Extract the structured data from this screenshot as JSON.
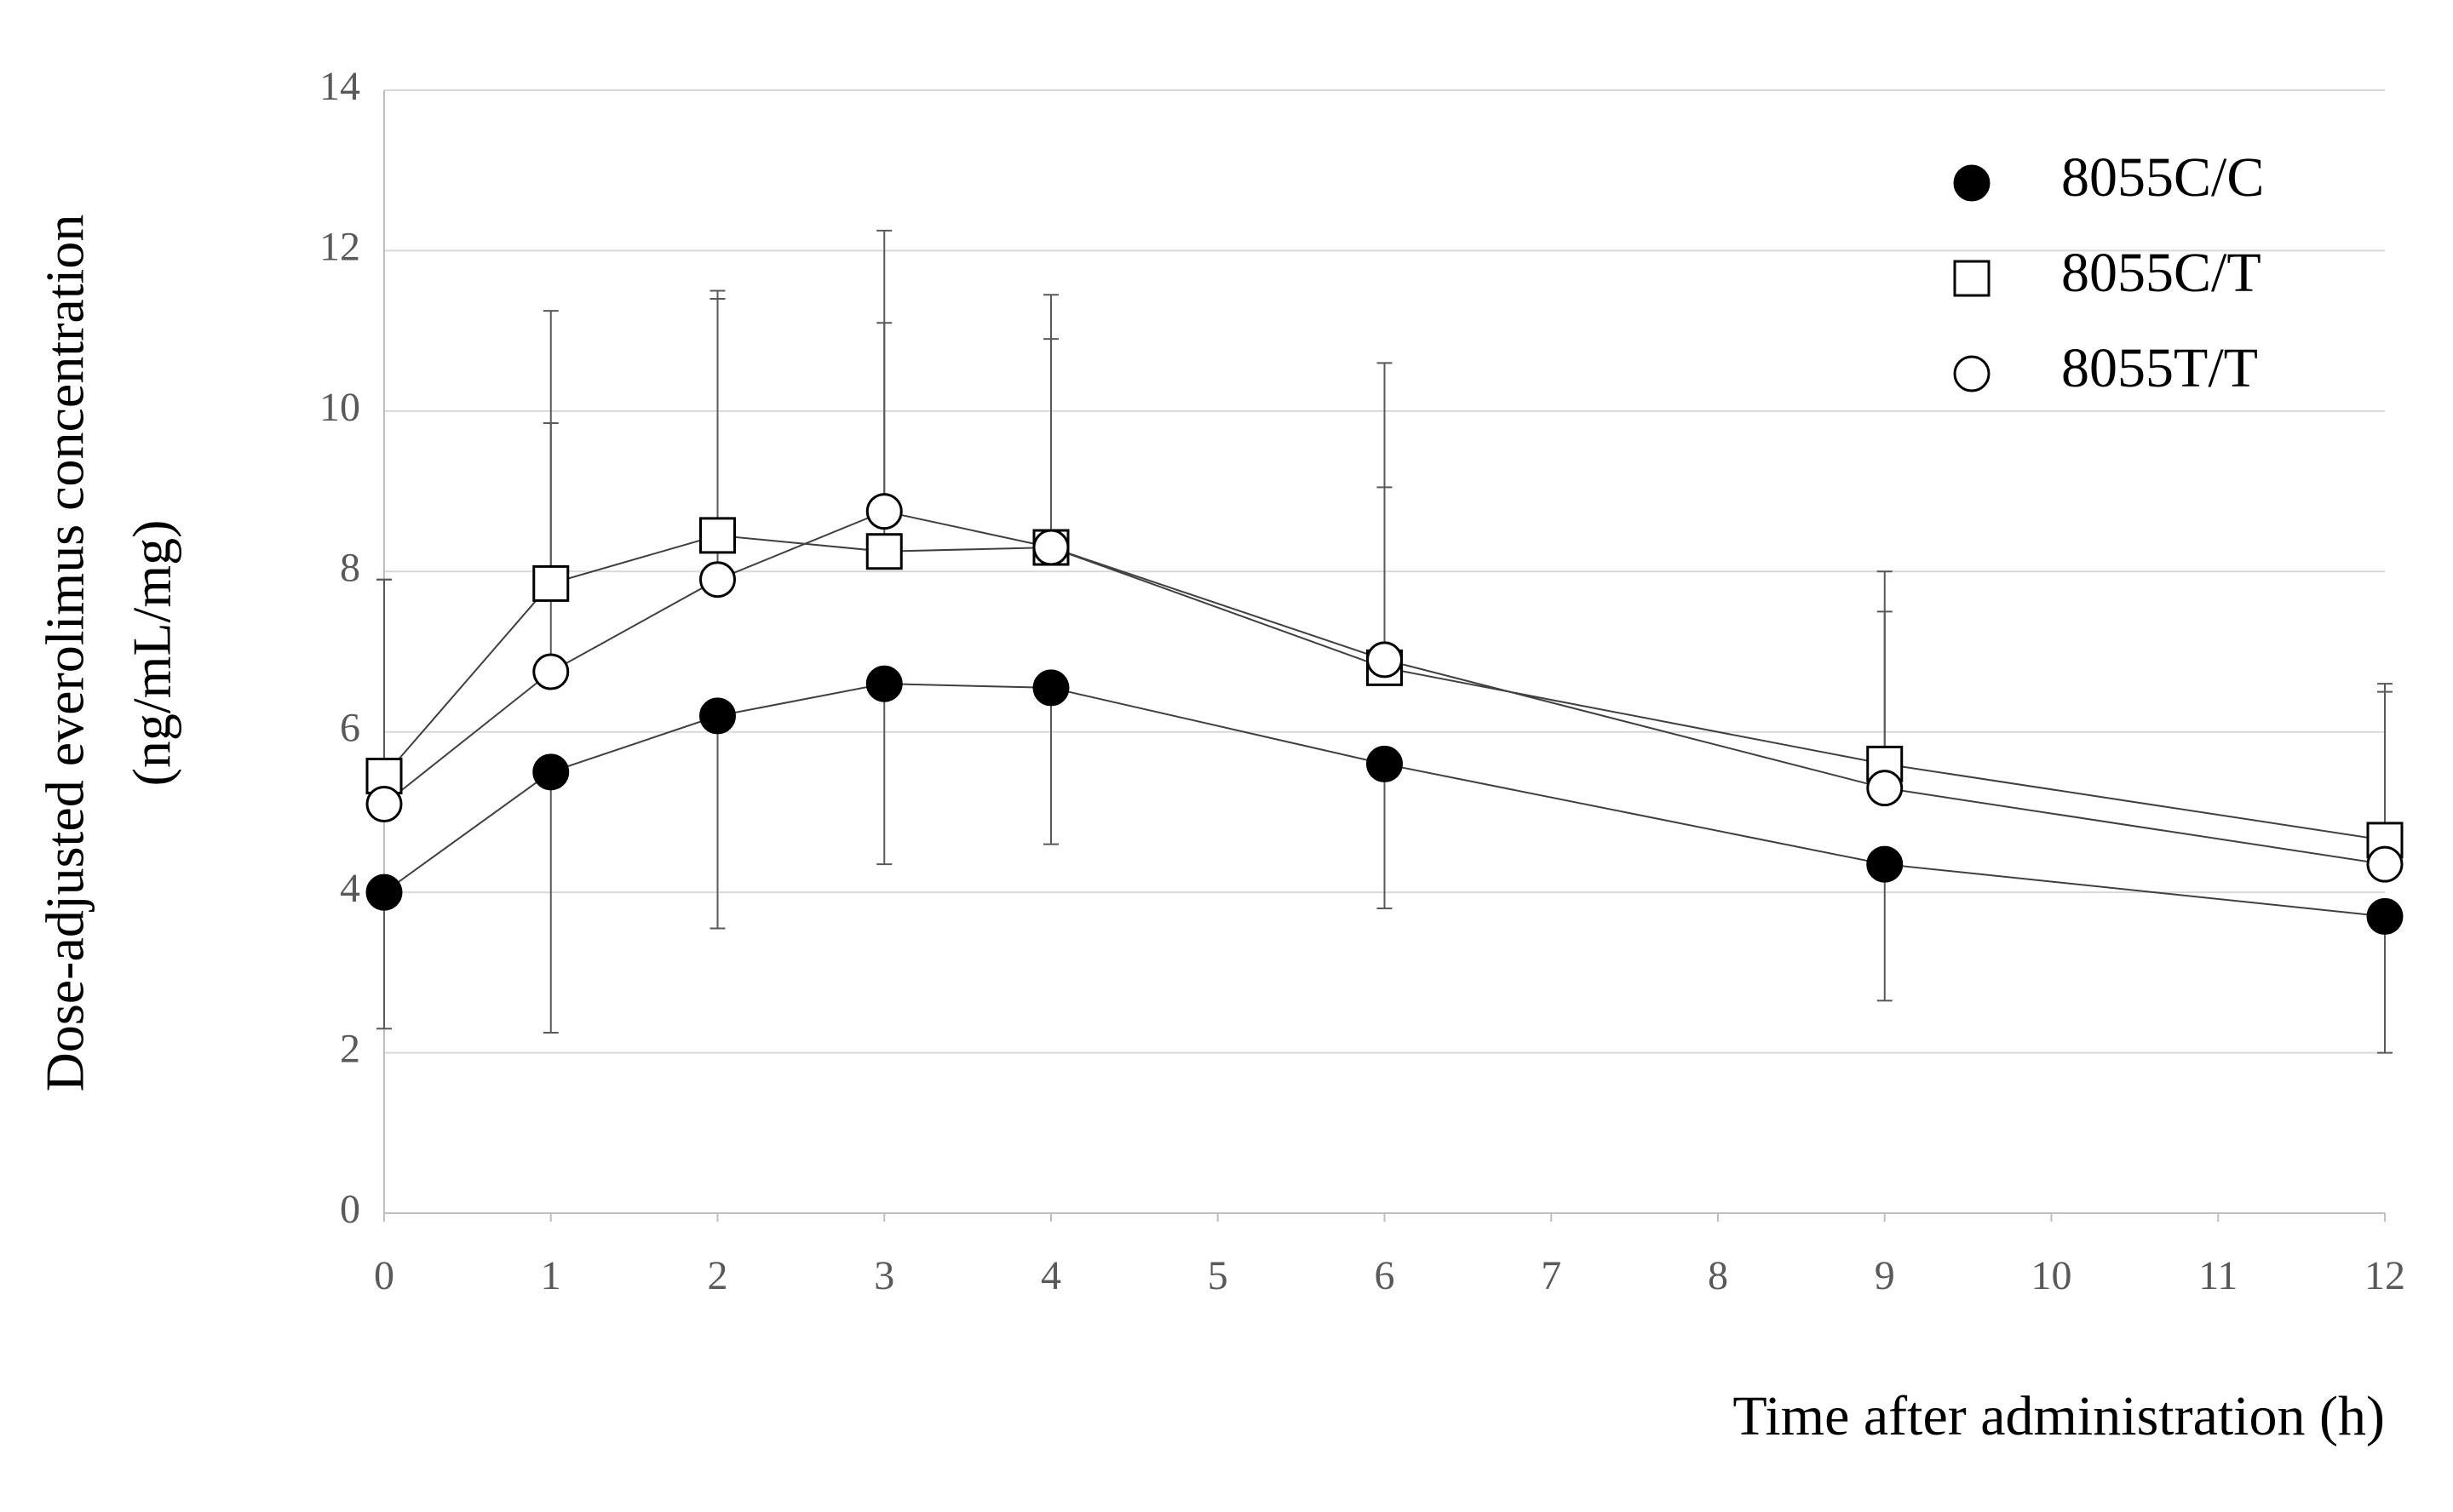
{
  "chart_data": {
    "type": "line",
    "xlabel": "Time after administration (h)",
    "ylabel": [
      "Dose-adjusted everolimus concentration",
      "(ng/mL/mg)"
    ],
    "x": [
      0,
      1,
      2,
      3,
      4,
      6,
      9,
      12
    ],
    "xlim": [
      0,
      12
    ],
    "xticks": [
      0,
      1,
      2,
      3,
      4,
      5,
      6,
      7,
      8,
      9,
      10,
      11,
      12
    ],
    "ylim": [
      0,
      14
    ],
    "yticks": [
      0,
      2,
      4,
      6,
      8,
      10,
      12,
      14
    ],
    "grid": true,
    "legend": "upper right",
    "series": [
      {
        "name": "8055C/C",
        "marker": "circle",
        "color": "#000000",
        "fill": "#000000",
        "values": [
          4.0,
          5.5,
          6.2,
          6.6,
          6.55,
          5.6,
          4.35,
          3.7
        ],
        "errors": [
          1.7,
          3.25,
          2.65,
          2.25,
          1.95,
          1.8,
          1.7,
          1.7
        ],
        "error_direction": "down"
      },
      {
        "name": "8055C/T",
        "marker": "square",
        "color": "#000000",
        "fill": "#ffffff",
        "values": [
          5.45,
          7.85,
          8.45,
          8.25,
          8.3,
          6.8,
          5.6,
          4.65
        ],
        "errors": [
          2.45,
          3.4,
          3.05,
          4.0,
          3.15,
          3.8,
          2.4,
          1.95
        ],
        "error_direction": "up"
      },
      {
        "name": "8055T/T",
        "marker": "circle",
        "color": "#000000",
        "fill": "#ffffff",
        "values": [
          5.1,
          6.75,
          7.9,
          8.75,
          8.3,
          6.9,
          5.3,
          4.35
        ],
        "errors": [
          2.8,
          3.1,
          3.5,
          2.35,
          2.6,
          2.15,
          2.2,
          2.15
        ],
        "error_direction": "up"
      }
    ]
  }
}
